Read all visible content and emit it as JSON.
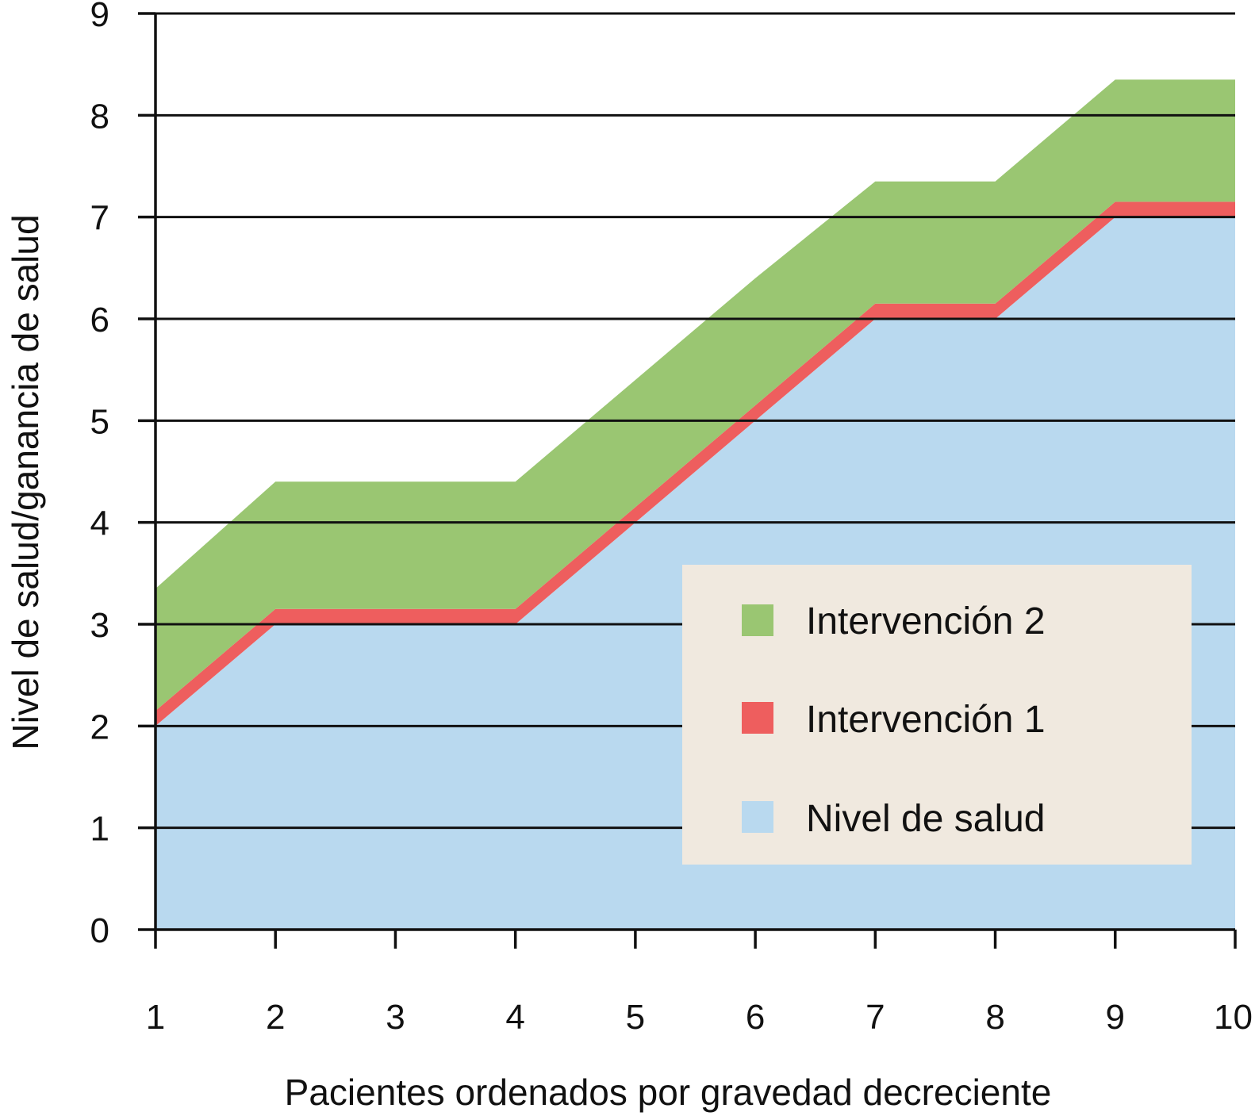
{
  "chart_data": {
    "type": "area",
    "stacked": true,
    "x": [
      1,
      2,
      3,
      4,
      5,
      6,
      7,
      8,
      9,
      10
    ],
    "series": [
      {
        "name": "Nivel de salud",
        "color": "#b9d9ef",
        "values": [
          2.0,
          3.0,
          3.0,
          3.0,
          4.0,
          5.0,
          6.0,
          6.0,
          7.0,
          7.0
        ]
      },
      {
        "name": "Intervención 1",
        "color": "#ee5e5e",
        "values": [
          0.15,
          0.15,
          0.15,
          0.15,
          0.15,
          0.15,
          0.15,
          0.15,
          0.15,
          0.15
        ]
      },
      {
        "name": "Intervención 2",
        "color": "#9ac672",
        "values": [
          1.2,
          1.25,
          1.25,
          1.25,
          1.25,
          1.25,
          1.2,
          1.2,
          1.2,
          1.2
        ]
      }
    ],
    "xlabel": "Pacientes ordenados por gravedad decreciente",
    "ylabel": "Nivel de salud/ganancia de salud",
    "xticks": [
      "1",
      "2",
      "3",
      "4",
      "5",
      "6",
      "7",
      "8",
      "9",
      "10"
    ],
    "yticks": [
      "0",
      "1",
      "2",
      "3",
      "4",
      "5",
      "6",
      "7",
      "8",
      "9"
    ],
    "xlim": [
      1,
      10
    ],
    "ylim": [
      0,
      9
    ],
    "grid": "horizontal",
    "legend": {
      "position": "bottom-right",
      "background": "#f0e9df",
      "entries": [
        "Intervención 2",
        "Intervención 1",
        "Nivel de salud"
      ]
    }
  }
}
